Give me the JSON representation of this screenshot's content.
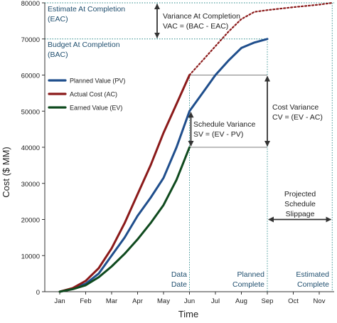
{
  "chart_data": {
    "type": "line",
    "xlabel": "Time",
    "ylabel": "Cost ($ MM)",
    "ylim": [
      0,
      80000
    ],
    "yticks": [
      0,
      10000,
      20000,
      30000,
      40000,
      50000,
      60000,
      70000,
      80000
    ],
    "categories": [
      "Jan",
      "Feb",
      "Mar",
      "Apr",
      "May",
      "Jun",
      "Jul",
      "Aug",
      "Sep",
      "Oct",
      "Nov"
    ],
    "grid": false,
    "legend_position": "upper-left",
    "series": [
      {
        "name": "Planned Value (PV)",
        "color": "#1f4e8c",
        "x": [
          0,
          0.5,
          1,
          1.5,
          2,
          2.5,
          3,
          3.5,
          4,
          4.5,
          5,
          5.5,
          6,
          6.5,
          7,
          7.5,
          8
        ],
        "values": [
          0,
          800,
          2200,
          5000,
          10000,
          15000,
          21000,
          26000,
          31500,
          40000,
          50000,
          55000,
          60000,
          64000,
          67500,
          69000,
          70000
        ]
      },
      {
        "name": "Actual Cost (AC)",
        "color": "#8b1a1a",
        "x": [
          0,
          0.5,
          1,
          1.5,
          2,
          2.5,
          3,
          3.5,
          4,
          4.5,
          5
        ],
        "values": [
          0,
          1000,
          3000,
          6500,
          12000,
          19000,
          27000,
          35000,
          44000,
          52000,
          60000
        ]
      },
      {
        "name": "Earned Value (EV)",
        "color": "#0f4a1e",
        "x": [
          0,
          0.5,
          1,
          1.5,
          2,
          2.5,
          3,
          3.5,
          4,
          4.5,
          5
        ],
        "values": [
          0,
          700,
          1800,
          4000,
          7000,
          10500,
          14500,
          19000,
          24000,
          31000,
          40000
        ]
      },
      {
        "name": "",
        "color": "#8b1a1a",
        "dashed": true,
        "x": [
          5,
          5.5,
          6,
          6.5,
          7,
          7.5,
          8,
          9,
          10,
          10.5
        ],
        "values": [
          60000,
          64000,
          68000,
          72000,
          75500,
          77500,
          78000,
          78800,
          79500,
          80000
        ]
      }
    ],
    "levels": {
      "eac": 80000,
      "bac": 70000,
      "cv_top": 60000,
      "cv_bottom": 40000,
      "sv_top": 50000,
      "sv_bottom": 40000,
      "data_date": 5,
      "planned_complete": 8,
      "estimated_complete": 10.5
    },
    "annotations": {
      "eac_line1": "Estimate At Completion",
      "eac_line2": "(EAC)",
      "bac_line1": "Budget At Completion",
      "bac_line2": "(BAC)",
      "vac_line1": "Variance At Completion",
      "vac_line2": "VAC = (BAC - EAC)",
      "cv_line1": "Cost Variance",
      "cv_line2": "CV = (EV - AC)",
      "sv_line1": "Schedule Variance",
      "sv_line2": "SV = (EV - PV)",
      "proj_line1": "Projected",
      "proj_line2": "Schedule",
      "proj_line3": "Slippage",
      "data_date_line1": "Data",
      "data_date_line2": "Date",
      "planned_line1": "Planned",
      "planned_line2": "Complete",
      "estimated_line1": "Estimated",
      "estimated_line2": "Complete"
    },
    "colors": {
      "annotation_text": "#1f4e6e",
      "guide": "#2a8a8a",
      "arrow": "#333333",
      "axis": "#333333"
    }
  }
}
